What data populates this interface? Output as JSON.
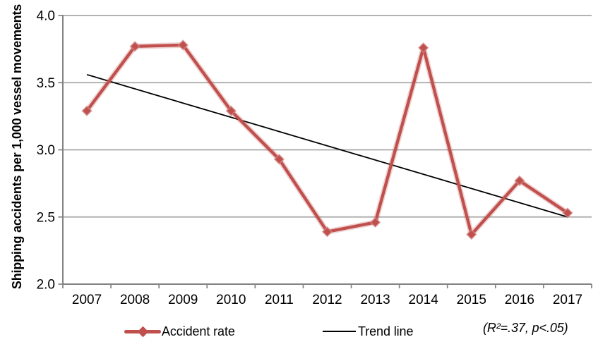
{
  "chart_data": {
    "type": "line",
    "title": "",
    "xlabel": "",
    "ylabel": "Shipping accidents per 1,000 vessel movements",
    "categories": [
      "2007",
      "2008",
      "2009",
      "2010",
      "2011",
      "2012",
      "2013",
      "2014",
      "2015",
      "2016",
      "2017"
    ],
    "series": [
      {
        "name": "Accident rate",
        "type": "line-with-diamond-markers",
        "color": "#C0504D",
        "values": [
          3.29,
          3.77,
          3.78,
          3.29,
          2.93,
          2.39,
          2.46,
          3.76,
          2.37,
          2.77,
          2.53
        ]
      },
      {
        "name": "Trend line",
        "type": "linear-trend",
        "color": "#000000",
        "endpoints": {
          "x": [
            "2007",
            "2017"
          ],
          "y": [
            3.56,
            2.5
          ]
        }
      }
    ],
    "ylim": [
      2.0,
      4.0
    ],
    "yticks": [
      "4.0",
      "3.5",
      "3.0",
      "2.5",
      "2.0"
    ],
    "grid": "horizontal",
    "legend_position": "bottom",
    "annotation": "(R²=.37, p<.05)"
  },
  "colors": {
    "accident_line": "#C0504D",
    "accident_marker_halo": "#D28A87",
    "trend_line": "#000000",
    "gridline": "#A8A8A8",
    "axis": "#828282",
    "text": "#000000"
  }
}
